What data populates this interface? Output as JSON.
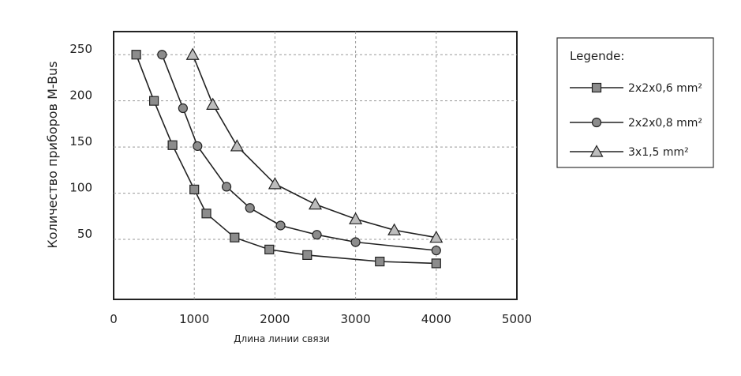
{
  "chart_data": {
    "type": "line",
    "title": "",
    "xlabel": "Длина линии связи",
    "ylabel": "Количество приборов M-Bus",
    "xlim": [
      0,
      5000
    ],
    "ylim": [
      -15,
      275
    ],
    "x_ticks": [
      0,
      1000,
      2000,
      3000,
      4000,
      5000
    ],
    "x_tick_labels": [
      "0",
      "1000",
      "2000",
      "3000",
      "4000",
      "5000"
    ],
    "y_ticks": [
      50,
      100,
      150,
      200,
      250
    ],
    "y_tick_labels": [
      "50",
      "100",
      "150",
      "200",
      "250"
    ],
    "grid": "dashed",
    "legend": {
      "title": "Legende:",
      "placement": "right"
    },
    "series": [
      {
        "name": "2x2x0,6 mm²",
        "marker": "square",
        "points": [
          [
            280,
            250
          ],
          [
            500,
            200
          ],
          [
            730,
            152
          ],
          [
            1000,
            104
          ],
          [
            1150,
            78
          ],
          [
            1500,
            52
          ],
          [
            1930,
            39
          ],
          [
            2400,
            33
          ],
          [
            3300,
            26
          ],
          [
            4000,
            24
          ]
        ]
      },
      {
        "name": "2x2x0,8 mm²",
        "marker": "circle",
        "points": [
          [
            600,
            250
          ],
          [
            860,
            192
          ],
          [
            1040,
            151
          ],
          [
            1400,
            107
          ],
          [
            1690,
            84
          ],
          [
            2070,
            65
          ],
          [
            2520,
            55
          ],
          [
            3000,
            47
          ],
          [
            4000,
            38
          ]
        ]
      },
      {
        "name": "3x1,5 mm²",
        "marker": "triangle",
        "points": [
          [
            980,
            250
          ],
          [
            1230,
            196
          ],
          [
            1530,
            151
          ],
          [
            2000,
            110
          ],
          [
            2500,
            88
          ],
          [
            3000,
            72
          ],
          [
            3480,
            60
          ],
          [
            4000,
            52
          ]
        ]
      }
    ]
  }
}
